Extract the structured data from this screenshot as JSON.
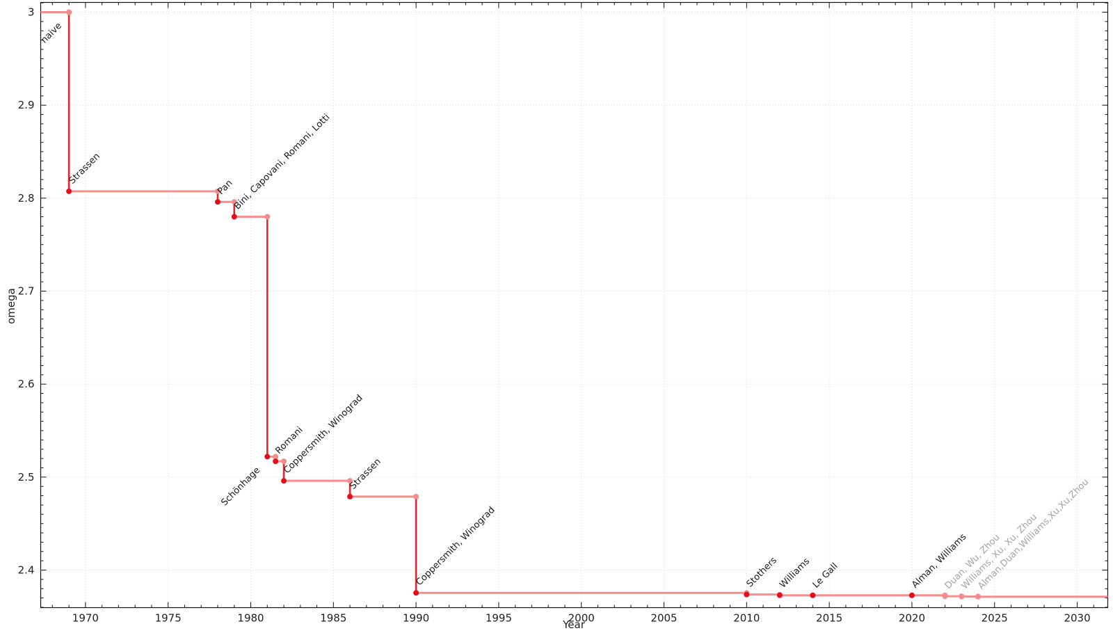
{
  "chart_data": {
    "type": "line",
    "subtype": "step-post",
    "title": "",
    "xlabel": "Year",
    "ylabel": "omega",
    "xlim": [
      1967.29,
      2031.85
    ],
    "ylim": [
      2.3596,
      3.0105
    ],
    "xticks": [
      1970,
      1975,
      1980,
      1985,
      1990,
      1995,
      2000,
      2005,
      2010,
      2015,
      2020,
      2025,
      2030
    ],
    "yticks": [
      2.4,
      2.5,
      2.6,
      2.7,
      2.8,
      2.9,
      3
    ],
    "x_minor_step": 1,
    "y_minor_step": 0.01,
    "grid": true,
    "legend": "none",
    "colors": {
      "segment_horizontal": "#f48e8e",
      "segment_vertical": "#e52528",
      "marker_dark": "#e3101c",
      "marker_light": "#f48c8c",
      "label_dark": "#1a1a1a",
      "label_gray": "#a4a4a4",
      "grid": "#e3e3e3",
      "axis": "#111111",
      "tick_label": "#202020"
    },
    "points": [
      {
        "year": 1969,
        "omega": 3.0,
        "label": "naive",
        "marker": "light",
        "label_color": "dark",
        "label_anchor": "end"
      },
      {
        "year": 1969,
        "omega": 2.8074,
        "label": "Strassen",
        "marker": "dark",
        "label_color": "dark",
        "label_anchor": "start"
      },
      {
        "year": 1978,
        "omega": 2.796,
        "label": "Pan",
        "marker": "dark",
        "label_color": "dark",
        "label_anchor": "start"
      },
      {
        "year": 1979,
        "omega": 2.78,
        "label": "Bini, Capovani, Romani, Lotti",
        "marker": "dark",
        "label_color": "dark",
        "label_anchor": "start"
      },
      {
        "year": 1981,
        "omega": 2.522,
        "label": "Schönhage",
        "marker": "dark",
        "label_color": "dark",
        "label_anchor": "end"
      },
      {
        "year": 1981.5,
        "omega": 2.517,
        "label": "Romani",
        "marker": "dark",
        "label_color": "dark",
        "label_anchor": "start"
      },
      {
        "year": 1982,
        "omega": 2.496,
        "label": "Coppersmith, Winograd",
        "marker": "dark",
        "label_color": "dark",
        "label_anchor": "start"
      },
      {
        "year": 1986,
        "omega": 2.479,
        "label": "Strassen",
        "marker": "dark",
        "label_color": "dark",
        "label_anchor": "start"
      },
      {
        "year": 1990,
        "omega": 2.3755,
        "label": "Coppersmith, Winograd",
        "marker": "dark",
        "label_color": "dark",
        "label_anchor": "start"
      },
      {
        "year": 2010,
        "omega": 2.3737,
        "label": "Stothers",
        "marker": "dark",
        "label_color": "dark",
        "label_anchor": "start"
      },
      {
        "year": 2012,
        "omega": 2.3729,
        "label": "Williams",
        "marker": "dark",
        "label_color": "dark",
        "label_anchor": "start"
      },
      {
        "year": 2014,
        "omega": 2.3728639,
        "label": "Le Gall",
        "marker": "dark",
        "label_color": "dark",
        "label_anchor": "start"
      },
      {
        "year": 2020,
        "omega": 2.3728596,
        "label": "Alman, Williams",
        "marker": "dark",
        "label_color": "dark",
        "label_anchor": "start"
      },
      {
        "year": 2022,
        "omega": 2.37188,
        "label": "Duan, Wu, Zhou",
        "marker": "light",
        "label_color": "gray",
        "label_anchor": "start"
      },
      {
        "year": 2023,
        "omega": 2.371552,
        "label": "Williams, Xu, Xu, Zhou",
        "marker": "light",
        "label_color": "gray",
        "label_anchor": "start"
      },
      {
        "year": 2024,
        "omega": 2.371339,
        "label": "Alman,Duan,Williams,Xu,Xu,Zhou",
        "marker": "light",
        "label_color": "gray",
        "label_anchor": "start"
      }
    ]
  }
}
